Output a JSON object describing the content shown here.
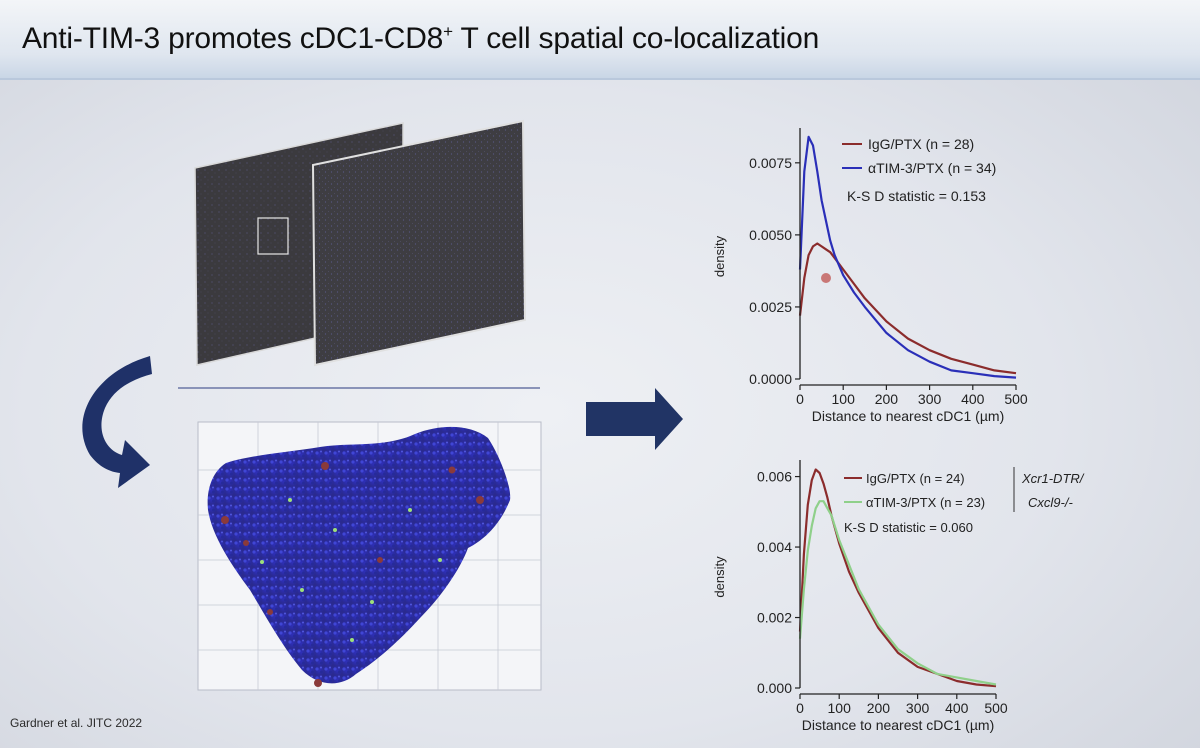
{
  "slide": {
    "title_main": "Anti-TIM-3 promotes cDC1-CD8",
    "title_sup": "+",
    "title_tail": " T cell spatial co-localization",
    "citation": "Gardner et al. JITC 2022"
  },
  "colors": {
    "igg": "#8b2c2c",
    "atim_top": "#2a2fb8",
    "atim_bottom": "#8fd08a",
    "axis": "#222222",
    "arrow": "#1f3168"
  },
  "icons": {
    "curved_arrow": "curved-arrow-icon",
    "right_arrow": "right-arrow-icon"
  },
  "chart_data": [
    {
      "type": "line",
      "title": "",
      "xlabel": "Distance to nearest cDC1 (µm)",
      "ylabel": "density",
      "xlim": [
        0,
        500
      ],
      "ylim": [
        0,
        0.0085
      ],
      "xticks": [
        0,
        100,
        200,
        300,
        400,
        500
      ],
      "xtick_labels": [
        "0",
        "100",
        "200",
        "300",
        "400",
        "500"
      ],
      "yticks": [
        0,
        0.0025,
        0.005,
        0.0075
      ],
      "ytick_labels": [
        "0.0000",
        "0.0025",
        "0.0050",
        "0.0075"
      ],
      "x": [
        0,
        10,
        20,
        30,
        40,
        50,
        60,
        70,
        80,
        100,
        125,
        150,
        200,
        250,
        300,
        350,
        400,
        450,
        500
      ],
      "series": [
        {
          "name": "IgG/PTX (n = 28)",
          "color": "#8b2c2c",
          "values": [
            0.0022,
            0.0035,
            0.0043,
            0.0046,
            0.0047,
            0.0046,
            0.0045,
            0.0044,
            0.0042,
            0.0038,
            0.0033,
            0.0028,
            0.002,
            0.0014,
            0.001,
            0.0007,
            0.0005,
            0.0003,
            0.0002
          ]
        },
        {
          "name": "αTIM-3/PTX (n = 34)",
          "color": "#2a2fb8",
          "values": [
            0.0038,
            0.0072,
            0.0084,
            0.0081,
            0.0072,
            0.0062,
            0.0055,
            0.0048,
            0.0043,
            0.0036,
            0.003,
            0.0025,
            0.0016,
            0.001,
            0.0006,
            0.0003,
            0.0002,
            0.0001,
            5e-05
          ]
        }
      ],
      "annotations": [
        "K-S D statistic = 0.153"
      ]
    },
    {
      "type": "line",
      "title": "",
      "xlabel": "Distance to nearest cDC1 (µm)",
      "ylabel": "density",
      "xlim": [
        0,
        500
      ],
      "ylim": [
        0,
        0.0063
      ],
      "xticks": [
        0,
        100,
        200,
        300,
        400,
        500
      ],
      "xtick_labels": [
        "0",
        "100",
        "200",
        "300",
        "400",
        "500"
      ],
      "yticks": [
        0,
        0.002,
        0.004,
        0.006
      ],
      "ytick_labels": [
        "0.000",
        "0.002",
        "0.004",
        "0.006"
      ],
      "x": [
        0,
        10,
        20,
        30,
        40,
        50,
        60,
        70,
        80,
        100,
        125,
        150,
        200,
        250,
        300,
        350,
        400,
        450,
        500
      ],
      "series": [
        {
          "name": "IgG/PTX (n = 24)",
          "color": "#8b2c2c",
          "values": [
            0.0016,
            0.0038,
            0.0052,
            0.0059,
            0.0062,
            0.0061,
            0.0058,
            0.0054,
            0.0049,
            0.0041,
            0.0033,
            0.0027,
            0.0017,
            0.001,
            0.0006,
            0.0004,
            0.0002,
            0.0001,
            5e-05
          ]
        },
        {
          "name": "αTIM-3/PTX (n = 23)",
          "color": "#8fd08a",
          "values": [
            0.0014,
            0.0028,
            0.0039,
            0.0046,
            0.0051,
            0.0053,
            0.0053,
            0.0051,
            0.0049,
            0.0042,
            0.0035,
            0.0028,
            0.0018,
            0.0011,
            0.0007,
            0.0004,
            0.0003,
            0.0002,
            0.0001
          ]
        }
      ],
      "annotations": [
        "K-S D statistic = 0.060"
      ],
      "legend_note": [
        "Xcr1-DTR/",
        "Cxcl9-/-"
      ]
    }
  ]
}
